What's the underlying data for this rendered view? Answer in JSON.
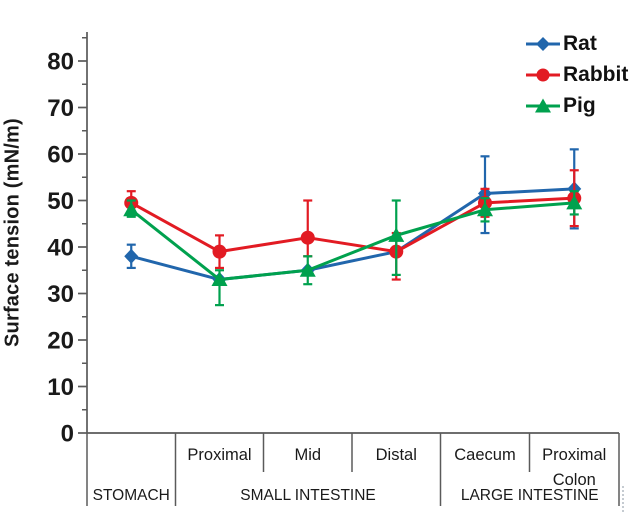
{
  "figure": {
    "y_axis_title": "Surface tension (mN/m)"
  },
  "chart_data": {
    "type": "line",
    "title": "",
    "xlabel": "",
    "ylabel": "Surface tension (mN/m)",
    "ylim": [
      0,
      85
    ],
    "yticks": [
      0,
      10,
      20,
      30,
      40,
      50,
      60,
      70,
      80
    ],
    "grid": false,
    "legend_position": "top-right",
    "axis_color": "#5a5a5a",
    "text_color": "#1a1a1a",
    "categories": [
      "Stomach",
      "Proximal",
      "Mid",
      "Distal",
      "Caecum",
      "Proximal Colon"
    ],
    "x_segment_labels": [
      "",
      "Proximal",
      "Mid",
      "Distal",
      "Caecum",
      "Proximal\nColon"
    ],
    "x_group_labels": [
      {
        "label": "STOMACH",
        "span": [
          0,
          1
        ]
      },
      {
        "label": "SMALL INTESTINE",
        "span": [
          1,
          4
        ]
      },
      {
        "label": "LARGE INTESTINE",
        "span": [
          4,
          6
        ]
      }
    ],
    "series": [
      {
        "name": "Rat",
        "color": "#2166ac",
        "marker": "diamond",
        "values": [
          38,
          33,
          35,
          39,
          51.5,
          52.5
        ],
        "err_low": [
          35.5,
          33,
          35,
          39,
          43,
          44
        ],
        "err_high": [
          40.5,
          33,
          35,
          39,
          59.5,
          61
        ]
      },
      {
        "name": "Rabbit",
        "color": "#e21b23",
        "marker": "circle",
        "values": [
          49.5,
          39,
          42,
          39,
          49.5,
          50.5
        ],
        "err_low": [
          47.5,
          35.5,
          38,
          33,
          46.5,
          44.5
        ],
        "err_high": [
          52,
          42.5,
          50,
          43,
          52.5,
          56.5
        ]
      },
      {
        "name": "Pig",
        "color": "#00a14e",
        "marker": "triangle",
        "values": [
          48,
          33,
          35,
          42.5,
          48,
          49.5
        ],
        "err_low": [
          46.5,
          27.5,
          32,
          34,
          45.5,
          47
        ],
        "err_high": [
          50,
          35,
          38,
          50,
          50.5,
          52
        ]
      }
    ]
  }
}
